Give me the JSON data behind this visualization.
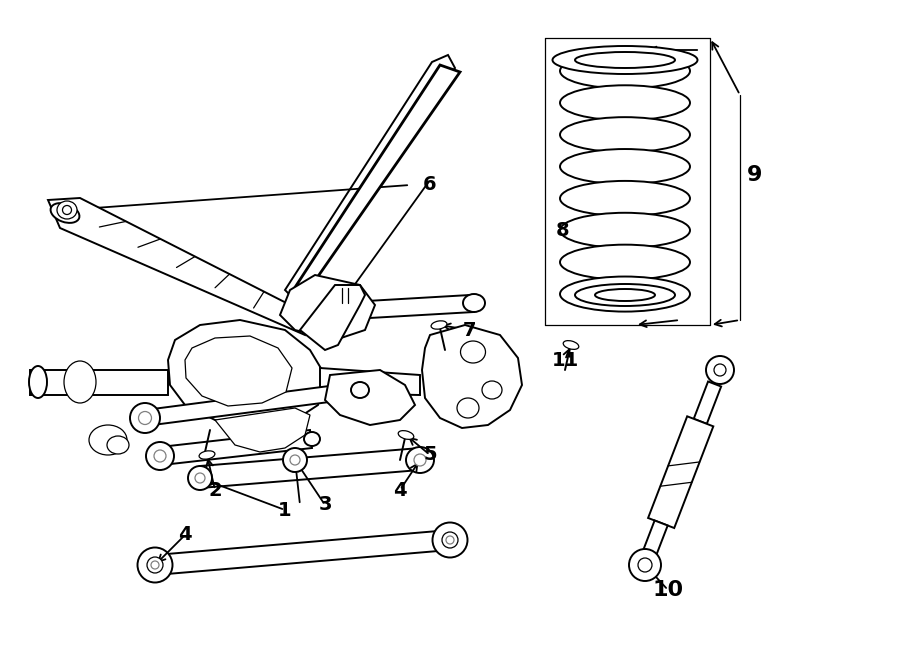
{
  "bg_color": "#ffffff",
  "line_color": "#000000",
  "figsize": [
    9.0,
    6.61
  ],
  "dpi": 100,
  "lw_heavy": 2.0,
  "lw_med": 1.4,
  "lw_thin": 0.9
}
